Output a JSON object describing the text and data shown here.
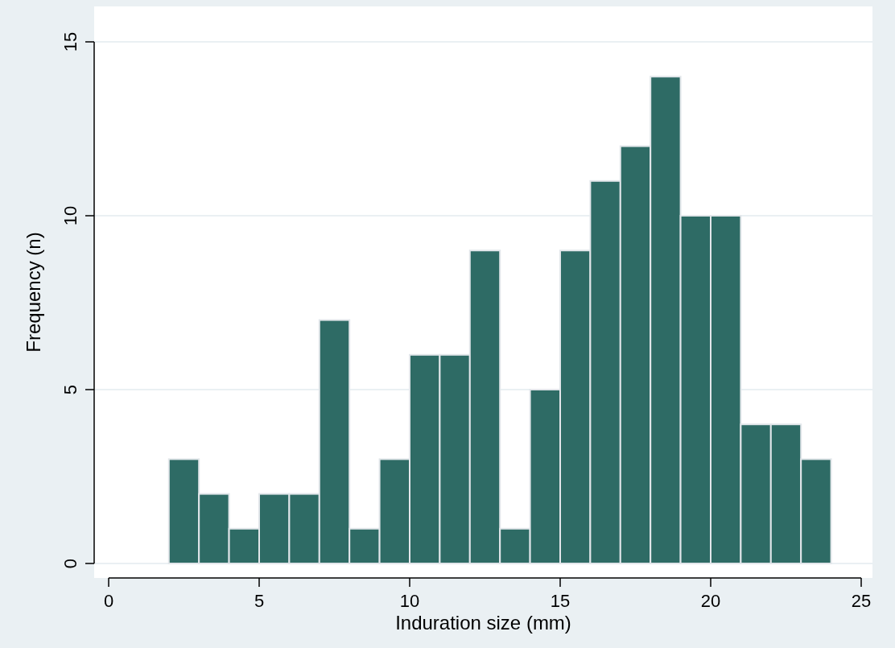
{
  "chart_data": {
    "type": "histogram",
    "xlabel": "Induration size (mm)",
    "ylabel": "Frequency (n)",
    "bins": [
      2,
      3,
      4,
      5,
      6,
      7,
      8,
      9,
      10,
      11,
      12,
      13,
      14,
      15,
      16,
      17,
      18,
      19,
      20,
      21,
      22,
      23,
      24
    ],
    "values": [
      3,
      2,
      1,
      2,
      2,
      7,
      1,
      3,
      6,
      6,
      9,
      1,
      5,
      9,
      11,
      12,
      14,
      10,
      10,
      4,
      4,
      3
    ],
    "color": "#2e6b65",
    "xlim": [
      0,
      25
    ],
    "xticks": [
      0,
      5,
      10,
      15,
      20,
      25
    ],
    "ylim": [
      0,
      15
    ],
    "yticks": [
      0,
      5,
      10,
      15
    ],
    "grid": "y"
  }
}
